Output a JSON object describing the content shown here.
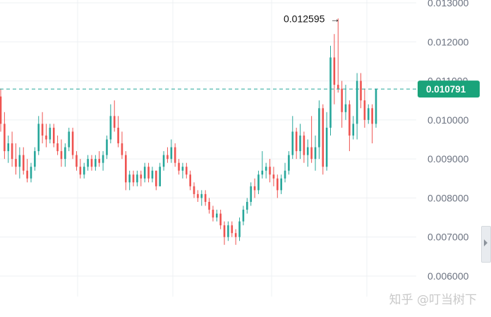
{
  "chart_data": {
    "type": "candlestick",
    "y_ticks": [
      "0.013000",
      "0.012000",
      "0.011000",
      "0.010000",
      "0.009000",
      "0.008000",
      "0.007000",
      "0.006000"
    ],
    "ylim": [
      0.0059,
      0.0131
    ],
    "grid": true,
    "current_price": 0.010791,
    "current_price_label": "0.010791",
    "high_marker": {
      "value": 0.012595,
      "label": "0.012595",
      "arrow": "→"
    },
    "colors": {
      "up": "#26a69a",
      "down": "#ef5350",
      "price_line": "#26a69a",
      "price_tag": "#1aa37a",
      "grid": "#eef0f3",
      "axis_text": "#6b7280"
    },
    "candles": [
      [
        0.0106,
        0.0108,
        0.0097,
        0.0099
      ],
      [
        0.0099,
        0.0102,
        0.009,
        0.0092
      ],
      [
        0.0092,
        0.0096,
        0.0089,
        0.0094
      ],
      [
        0.0094,
        0.0097,
        0.0088,
        0.009
      ],
      [
        0.009,
        0.0094,
        0.0086,
        0.0088
      ],
      [
        0.0088,
        0.0093,
        0.0085,
        0.0091
      ],
      [
        0.0091,
        0.0093,
        0.0086,
        0.0087
      ],
      [
        0.0087,
        0.009,
        0.0084,
        0.0085
      ],
      [
        0.0085,
        0.0089,
        0.0084,
        0.0088
      ],
      [
        0.0088,
        0.0093,
        0.0087,
        0.0092
      ],
      [
        0.0092,
        0.0101,
        0.0091,
        0.0099
      ],
      [
        0.0099,
        0.0102,
        0.0094,
        0.0096
      ],
      [
        0.0096,
        0.0099,
        0.0093,
        0.0095
      ],
      [
        0.0095,
        0.0099,
        0.0094,
        0.0098
      ],
      [
        0.0098,
        0.0099,
        0.0093,
        0.0094
      ],
      [
        0.0094,
        0.0096,
        0.0091,
        0.0092
      ],
      [
        0.0092,
        0.0095,
        0.0088,
        0.009
      ],
      [
        0.009,
        0.0094,
        0.0088,
        0.0093
      ],
      [
        0.0093,
        0.0098,
        0.0092,
        0.0097
      ],
      [
        0.0097,
        0.0098,
        0.009,
        0.0091
      ],
      [
        0.0091,
        0.0092,
        0.0087,
        0.0088
      ],
      [
        0.0088,
        0.009,
        0.0085,
        0.0086
      ],
      [
        0.0086,
        0.0089,
        0.0085,
        0.0088
      ],
      [
        0.0088,
        0.0091,
        0.0087,
        0.009
      ],
      [
        0.009,
        0.0091,
        0.0087,
        0.0088
      ],
      [
        0.0088,
        0.0091,
        0.0087,
        0.009
      ],
      [
        0.009,
        0.0092,
        0.0088,
        0.0089
      ],
      [
        0.0089,
        0.0092,
        0.0087,
        0.0091
      ],
      [
        0.0091,
        0.0096,
        0.009,
        0.0095
      ],
      [
        0.0095,
        0.0104,
        0.0094,
        0.0101
      ],
      [
        0.0101,
        0.0105,
        0.0097,
        0.0098
      ],
      [
        0.0098,
        0.0101,
        0.0093,
        0.0094
      ],
      [
        0.0094,
        0.0097,
        0.009,
        0.0091
      ],
      [
        0.0091,
        0.0092,
        0.0082,
        0.0084
      ],
      [
        0.0084,
        0.0087,
        0.0082,
        0.0086
      ],
      [
        0.0086,
        0.0087,
        0.0083,
        0.0084
      ],
      [
        0.0084,
        0.0087,
        0.0083,
        0.0086
      ],
      [
        0.0086,
        0.0087,
        0.0083,
        0.0085
      ],
      [
        0.0085,
        0.0089,
        0.0084,
        0.0088
      ],
      [
        0.0088,
        0.0089,
        0.0084,
        0.0085
      ],
      [
        0.0085,
        0.0088,
        0.0084,
        0.0087
      ],
      [
        0.0087,
        0.0087,
        0.0082,
        0.0083
      ],
      [
        0.0083,
        0.0089,
        0.0083,
        0.0088
      ],
      [
        0.0088,
        0.0092,
        0.0087,
        0.0091
      ],
      [
        0.0091,
        0.0093,
        0.0089,
        0.009
      ],
      [
        0.009,
        0.0095,
        0.0089,
        0.0093
      ],
      [
        0.0093,
        0.0094,
        0.0088,
        0.0089
      ],
      [
        0.0089,
        0.009,
        0.0086,
        0.0087
      ],
      [
        0.0087,
        0.0089,
        0.0085,
        0.0088
      ],
      [
        0.0088,
        0.0089,
        0.0085,
        0.0086
      ],
      [
        0.0086,
        0.0087,
        0.0082,
        0.0083
      ],
      [
        0.0083,
        0.0084,
        0.008,
        0.0081
      ],
      [
        0.0081,
        0.0082,
        0.0079,
        0.008
      ],
      [
        0.008,
        0.0082,
        0.0078,
        0.0081
      ],
      [
        0.0081,
        0.0082,
        0.0078,
        0.0079
      ],
      [
        0.0079,
        0.008,
        0.0076,
        0.0077
      ],
      [
        0.0077,
        0.0078,
        0.0074,
        0.0075
      ],
      [
        0.0075,
        0.0077,
        0.0074,
        0.0076
      ],
      [
        0.0076,
        0.0077,
        0.0072,
        0.0073
      ],
      [
        0.0073,
        0.0074,
        0.0068,
        0.007
      ],
      [
        0.007,
        0.0074,
        0.0069,
        0.0073
      ],
      [
        0.0073,
        0.0074,
        0.007,
        0.0071
      ],
      [
        0.0071,
        0.0072,
        0.0068,
        0.007
      ],
      [
        0.007,
        0.0075,
        0.0069,
        0.0074
      ],
      [
        0.0074,
        0.0078,
        0.0073,
        0.0077
      ],
      [
        0.0077,
        0.008,
        0.0076,
        0.0079
      ],
      [
        0.0079,
        0.0084,
        0.0078,
        0.0083
      ],
      [
        0.0083,
        0.0085,
        0.008,
        0.0082
      ],
      [
        0.0082,
        0.0087,
        0.0081,
        0.0086
      ],
      [
        0.0086,
        0.0092,
        0.0085,
        0.0087
      ],
      [
        0.0087,
        0.0089,
        0.0085,
        0.0088
      ],
      [
        0.0088,
        0.009,
        0.0084,
        0.0086
      ],
      [
        0.0086,
        0.0088,
        0.0083,
        0.0085
      ],
      [
        0.0085,
        0.0086,
        0.008,
        0.0082
      ],
      [
        0.0082,
        0.0086,
        0.0081,
        0.0085
      ],
      [
        0.0085,
        0.0089,
        0.0084,
        0.0087
      ],
      [
        0.0087,
        0.0092,
        0.0086,
        0.0091
      ],
      [
        0.0091,
        0.0101,
        0.009,
        0.0097
      ],
      [
        0.0097,
        0.0098,
        0.009,
        0.0092
      ],
      [
        0.0092,
        0.0099,
        0.009,
        0.0096
      ],
      [
        0.0096,
        0.0097,
        0.0089,
        0.0091
      ],
      [
        0.0091,
        0.0095,
        0.0088,
        0.0093
      ],
      [
        0.0093,
        0.0101,
        0.0089,
        0.009
      ],
      [
        0.009,
        0.0096,
        0.0087,
        0.0093
      ],
      [
        0.0093,
        0.0105,
        0.009,
        0.0103
      ],
      [
        0.0103,
        0.0104,
        0.0086,
        0.0088
      ],
      [
        0.0088,
        0.0102,
        0.0087,
        0.0098
      ],
      [
        0.0098,
        0.0119,
        0.0096,
        0.0116
      ],
      [
        0.0116,
        0.0122,
        0.0104,
        0.0109
      ],
      [
        0.0109,
        0.0126,
        0.0107,
        0.0108
      ],
      [
        0.0108,
        0.011,
        0.0098,
        0.0102
      ],
      [
        0.0102,
        0.0109,
        0.01,
        0.0104
      ],
      [
        0.0104,
        0.0105,
        0.0092,
        0.0096
      ],
      [
        0.0096,
        0.0101,
        0.0095,
        0.0099
      ],
      [
        0.0099,
        0.0112,
        0.0095,
        0.011
      ],
      [
        0.011,
        0.0112,
        0.0103,
        0.0105
      ],
      [
        0.0105,
        0.0108,
        0.0098,
        0.01
      ],
      [
        0.01,
        0.0104,
        0.0099,
        0.0103
      ],
      [
        0.0103,
        0.0104,
        0.0094,
        0.0099
      ],
      [
        0.0099,
        0.0108,
        0.0098,
        0.0108
      ]
    ]
  },
  "watermark": "知乎 @叮当树下"
}
